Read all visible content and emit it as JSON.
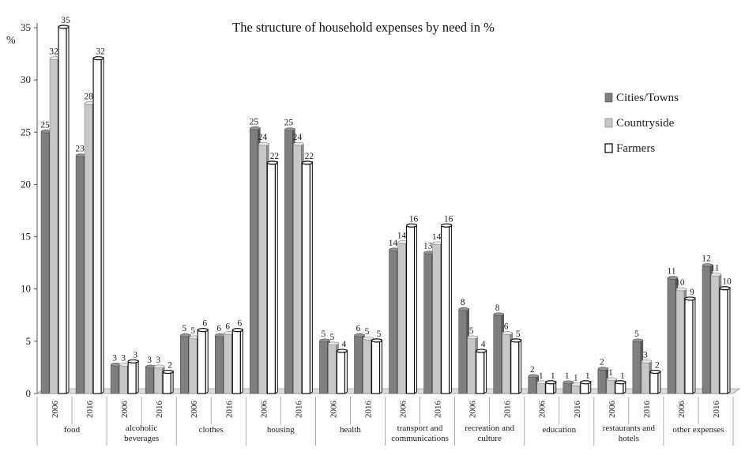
{
  "chart_data": {
    "type": "bar",
    "title": "The structure of household expenses by need in %",
    "ylabel": "%",
    "xlabel": "",
    "ylim": [
      0,
      35
    ],
    "yticks": [
      0,
      5,
      10,
      15,
      20,
      25,
      30,
      35
    ],
    "grid": false,
    "legend_position": "right",
    "groups": [
      "food",
      "alcoholic beverages",
      "clothes",
      "housing",
      "health",
      "transport and communications",
      "recreation and culture",
      "education",
      "restaurants and hotels",
      "other expenses"
    ],
    "years": [
      "2006",
      "2016"
    ],
    "series": [
      {
        "name": "Cities/Towns",
        "color": "#7f7f7f",
        "values": [
          25,
          22.7,
          2.7,
          2.5,
          5.5,
          5.5,
          25.3,
          25.2,
          5,
          5.5,
          13.7,
          13.4,
          8,
          7.5,
          1.6,
          1,
          2.3,
          5,
          11,
          12.2
        ],
        "labels": [
          "25",
          "23",
          "3",
          "3",
          "5",
          "6",
          "25",
          "25",
          "5",
          "6",
          "14",
          "13",
          "8",
          "8",
          "2",
          "1",
          "2",
          "5",
          "11",
          "12"
        ]
      },
      {
        "name": "Countryside",
        "color": "#c8c8c8",
        "values": [
          32,
          27.7,
          2.7,
          2.5,
          5.3,
          5.7,
          23.8,
          23.8,
          4.7,
          5.2,
          14.4,
          14.3,
          5.3,
          5.7,
          1,
          0.8,
          1.3,
          3,
          9.9,
          11.3
        ],
        "labels": [
          "32",
          "28",
          "3",
          "3",
          "5",
          "6",
          "24",
          "24",
          "5",
          "5",
          "14",
          "14",
          "5",
          "6",
          "1",
          "1",
          "1",
          "3",
          "10",
          "11"
        ]
      },
      {
        "name": "Farmers",
        "color": "#ffffff",
        "values": [
          35,
          32,
          3,
          2,
          6,
          6,
          22,
          22,
          4,
          5,
          16,
          16,
          4,
          5,
          1,
          1,
          1,
          2,
          9,
          10
        ],
        "labels": [
          "35",
          "32",
          "3",
          "2",
          "6",
          "6",
          "22",
          "22",
          "4",
          "5",
          "16",
          "16",
          "4",
          "5",
          "1",
          "1",
          "1",
          "2",
          "9",
          "10"
        ]
      }
    ]
  }
}
